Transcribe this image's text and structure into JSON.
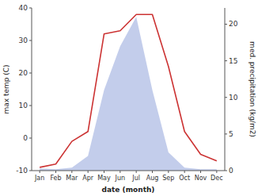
{
  "chart_data": {
    "type": "line",
    "categories": [
      "Jan",
      "Feb",
      "Mar",
      "Apr",
      "May",
      "Jun",
      "Jul",
      "Aug",
      "Sep",
      "Oct",
      "Nov",
      "Dec"
    ],
    "series": [
      {
        "type": "area",
        "axis": "y2",
        "color": "#b8c4e8",
        "values": [
          0.3,
          0.2,
          0.4,
          2.0,
          11,
          17,
          21,
          11,
          2.5,
          0.4,
          0.2,
          0.2
        ]
      },
      {
        "type": "line",
        "color": "#cc3333",
        "values": [
          -9,
          -8,
          -1,
          2,
          32,
          33,
          38,
          38,
          22,
          2,
          -5,
          -7
        ]
      }
    ],
    "xlabel": "date (month)",
    "ylabel": "max temp (C)",
    "y2label": "med. precipitation (kg/m2)",
    "ylim": [
      -10,
      40
    ],
    "yticks": [
      -10,
      0,
      10,
      20,
      30,
      40
    ],
    "y2lim": [
      0,
      22.222
    ],
    "y2ticks": [
      0,
      5,
      10,
      15,
      20
    ],
    "grid": false
  }
}
